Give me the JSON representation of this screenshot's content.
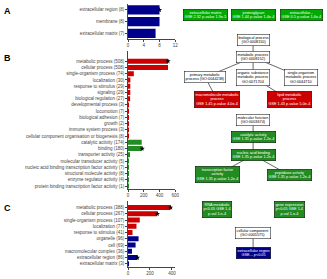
{
  "chart_data": [
    {
      "type": "bar",
      "orientation": "horizontal",
      "title": "A",
      "categories": [
        "extracellular region (8)",
        "membrane (8)",
        "extracellular matrix (7)"
      ],
      "values": [
        8,
        8,
        7
      ],
      "colors": [
        "#00008B",
        "#00008B",
        "#00008B"
      ],
      "starred": [
        true,
        false,
        false
      ],
      "xlim": [
        0,
        12
      ],
      "xticks": [
        0,
        4,
        8,
        12
      ],
      "grid": false,
      "annotations": [
        {
          "text": "extracellular matrix\nGSE 2.32 p-value 1.9e-5",
          "color": "#00AA00"
        },
        {
          "text": "proteoglycan\nGSE 1.44 p-value 1.4e-4",
          "color": "#00AA00"
        },
        {
          "text": "extracellular...\nGSE 0.5 p-value 1.4e-4",
          "color": "#00AA00"
        }
      ]
    },
    {
      "type": "bar",
      "orientation": "horizontal",
      "title": "B",
      "categories": [
        "metabolic process (508)",
        "cellular process (508)",
        "single-organism process (74)",
        "localization (30)",
        "response to stimulus (29)",
        "signaling (29)",
        "biological regulation (27)",
        "developmental process (3)",
        "locomotion (7)",
        "biological adhesion (7)",
        "growth (2)",
        "immune system process (3)",
        "cellular component organisation or biogenesis (8)",
        "catalytic activity (174)",
        "binding (180)",
        "transporter activity (25)",
        "molecular transducer activity (5)",
        "nucleic acid binding transcription factor activity (7)",
        "structural molecule activity (8)",
        "enzyme regulator activity (4)",
        "protein binding transcription factor activity (1)"
      ],
      "values": [
        508,
        508,
        74,
        30,
        29,
        29,
        27,
        3,
        7,
        7,
        2,
        3,
        8,
        174,
        180,
        25,
        5,
        7,
        8,
        4,
        1
      ],
      "colors": [
        "#CC0000",
        "#CC0000",
        "#CC0000",
        "#CC0000",
        "#CC0000",
        "#CC0000",
        "#CC0000",
        "#CC0000",
        "#CC0000",
        "#CC0000",
        "#CC0000",
        "#CC0000",
        "#CC0000",
        "#228B22",
        "#228B22",
        "#228B22",
        "#228B22",
        "#228B22",
        "#228B22",
        "#228B22",
        "#228B22"
      ],
      "starred": [
        true,
        false,
        false,
        false,
        false,
        false,
        false,
        false,
        false,
        false,
        false,
        false,
        false,
        false,
        true,
        false,
        false,
        false,
        false,
        false,
        false
      ],
      "xlim": [
        0,
        600
      ],
      "xticks": [
        0,
        200,
        400,
        600
      ],
      "grid": false,
      "annotations": [
        {
          "text": "biological process\n(GO:0008150)",
          "color": "white"
        },
        {
          "text": "metabolic process\n(GO:0008152)",
          "color": "white"
        },
        {
          "text": "primary metabolic\nprocess (GO:0044238)",
          "color": "white"
        },
        {
          "text": "organic substance\nmetabolic process\nGO:0071704",
          "color": "white"
        },
        {
          "text": "single-organism\nmetabolic process\nGO:0044710",
          "color": "white"
        },
        {
          "text": "macromolecule metabolic\nprocess\nGSE 1.45 p-value 4.0e-4",
          "color": "#CC0000"
        },
        {
          "text": "lipid metabolic\nprocess\nGSE 1.43 p-value 5.0e-4",
          "color": "#CC0000"
        },
        {
          "text": "molecular function\n(GO:0003674)",
          "color": "white"
        },
        {
          "text": "catalytic activity\nGSE 1.35 p-value 1.2e-4",
          "color": "#228B22"
        },
        {
          "text": "nucleic acid binding\nGSE 1.35 p-value 1.2e-4",
          "color": "#228B22"
        },
        {
          "text": "transcription factor\nactivity\nGSE 1.35 p-value 1.2e-4",
          "color": "#228B22"
        },
        {
          "text": "peptidase activity\nGSE 1.35 p-value 1.2e-4",
          "color": "#228B22"
        }
      ]
    },
    {
      "type": "bar",
      "orientation": "horizontal",
      "title": "C",
      "categories": [
        "metabolic process (388)",
        "cellular process (267)",
        "single-organism process (107)",
        "localization (77)",
        "response to stimulus (41)",
        "organelle (96)",
        "cell (69)",
        "macromolecular complex (36)",
        "extracellular region (86)",
        "extracellular matrix (3)"
      ],
      "values": [
        388,
        267,
        107,
        77,
        41,
        96,
        69,
        36,
        86,
        3
      ],
      "colors": [
        "#CC0000",
        "#CC0000",
        "#CC0000",
        "#CC0000",
        "#CC0000",
        "#00008B",
        "#00008B",
        "#00008B",
        "#00008B",
        "#00008B"
      ],
      "starred": [
        true,
        true,
        false,
        false,
        false,
        false,
        false,
        false,
        true,
        false
      ],
      "xlim": [
        0,
        430
      ],
      "xticks": [
        0,
        200,
        400
      ],
      "grid": false,
      "annotations": [
        {
          "text": "RNA metabolic\np<0.05 GSE 1.4\np-val 1.e-4",
          "color": "#228B22"
        },
        {
          "text": "gene expression\np<0.05 GSE 1.4\np-val 1.e-4",
          "color": "#228B22"
        },
        {
          "text": "cellular component\n(GO:0005575)",
          "color": "white"
        },
        {
          "text": "extracellular region\nGSE... p<0.05",
          "color": "#00008B"
        }
      ]
    }
  ]
}
